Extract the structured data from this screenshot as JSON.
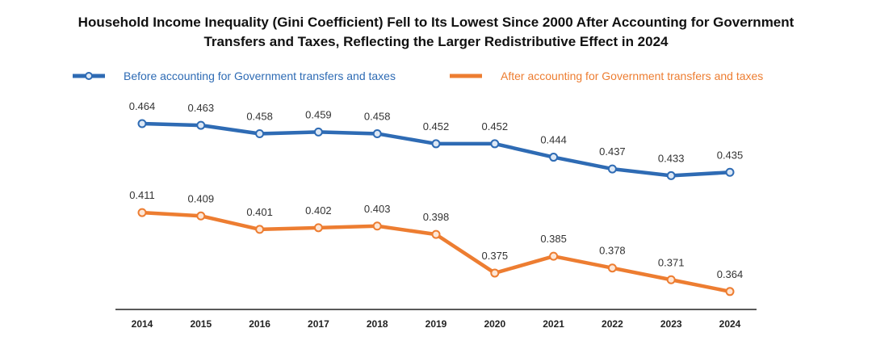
{
  "chart_data": {
    "type": "line",
    "title_line1": "Household Income Inequality (Gini Coefficient) Fell to Its Lowest Since 2000 After Accounting for Government",
    "title_line2": "Transfers and Taxes, Reflecting the Larger Redistributive Effect in 2024",
    "categories": [
      "2014",
      "2015",
      "2016",
      "2017",
      "2018",
      "2019",
      "2020",
      "2021",
      "2022",
      "2023",
      "2024"
    ],
    "series": [
      {
        "name": "Before accounting for Government transfers and taxes",
        "color": "#2E6BB4",
        "values": [
          0.464,
          0.463,
          0.458,
          0.459,
          0.458,
          0.452,
          0.452,
          0.444,
          0.437,
          0.433,
          0.435
        ],
        "labels": [
          "0.464",
          "0.463",
          "0.458",
          "0.459",
          "0.458",
          "0.452",
          "0.452",
          "0.444",
          "0.437",
          "0.433",
          "0.435"
        ]
      },
      {
        "name": "After accounting for Government transfers and taxes",
        "color": "#ED7D31",
        "values": [
          0.411,
          0.409,
          0.401,
          0.402,
          0.403,
          0.398,
          0.375,
          0.385,
          0.378,
          0.371,
          0.364
        ],
        "labels": [
          "0.411",
          "0.409",
          "0.401",
          "0.402",
          "0.403",
          "0.398",
          "0.375",
          "0.385",
          "0.378",
          "0.371",
          "0.364"
        ]
      }
    ],
    "legend_position": "top",
    "grid": false,
    "data_labels": true,
    "x_axis_line": true
  }
}
